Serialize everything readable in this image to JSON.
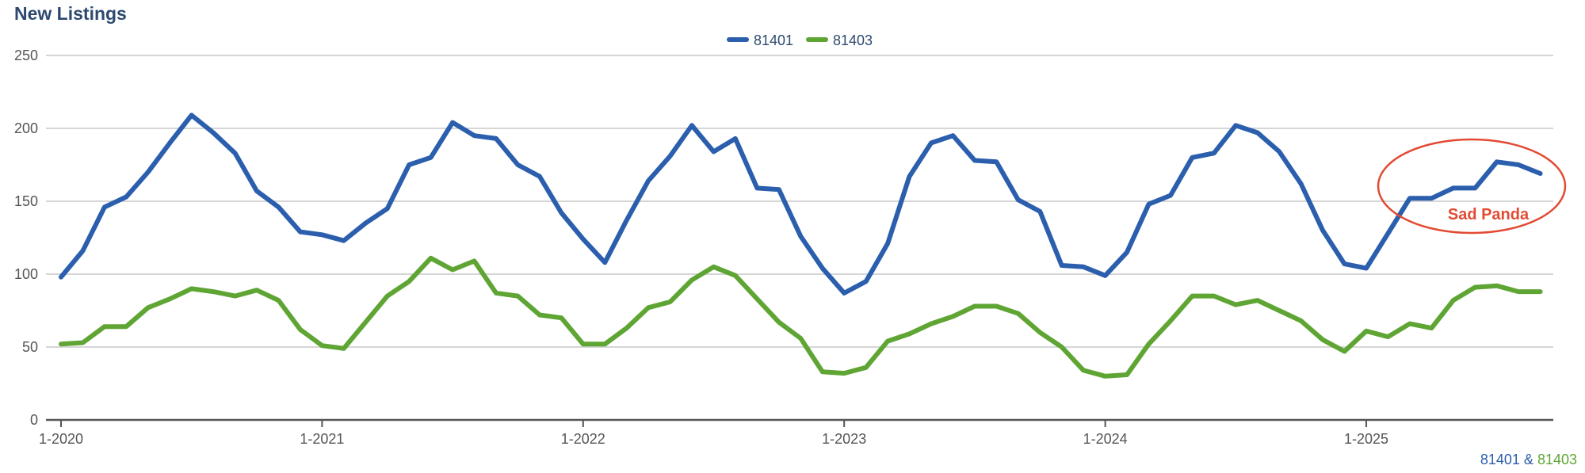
{
  "chart_data": {
    "type": "line",
    "title": "New Listings",
    "xlabel": "",
    "ylabel": "",
    "ylim": [
      0,
      250
    ],
    "yticks": [
      0,
      50,
      100,
      150,
      200,
      250
    ],
    "xticks": [
      "1-2020",
      "1-2021",
      "1-2022",
      "1-2023",
      "1-2024",
      "1-2025"
    ],
    "x_unit": "month index from 1-2020",
    "grid": true,
    "legend_position": "top-center",
    "series": [
      {
        "name": "81401",
        "color": "#2b5fad",
        "values": [
          98,
          116,
          146,
          153,
          170,
          190,
          209,
          197,
          183,
          157,
          146,
          129,
          127,
          123,
          135,
          145,
          175,
          180,
          204,
          195,
          193,
          175,
          167,
          142,
          124,
          108,
          137,
          164,
          181,
          202,
          184,
          193,
          159,
          158,
          126,
          104,
          87,
          95,
          121,
          167,
          190,
          195,
          178,
          177,
          151,
          143,
          106,
          105,
          99,
          115,
          148,
          154,
          180,
          183,
          202,
          197,
          184,
          162,
          130,
          107,
          104,
          128,
          152,
          152,
          159,
          159,
          177,
          175,
          169
        ]
      },
      {
        "name": "81403",
        "color": "#5fa534",
        "values": [
          52,
          53,
          64,
          64,
          77,
          83,
          90,
          88,
          85,
          89,
          82,
          62,
          51,
          49,
          67,
          85,
          95,
          111,
          103,
          109,
          87,
          85,
          72,
          70,
          52,
          52,
          63,
          77,
          81,
          96,
          105,
          99,
          83,
          67,
          56,
          33,
          32,
          36,
          54,
          59,
          66,
          71,
          78,
          78,
          73,
          60,
          50,
          34,
          30,
          31,
          52,
          68,
          85,
          85,
          79,
          82,
          75,
          68,
          55,
          47,
          61,
          57,
          66,
          63,
          82,
          91,
          92,
          88,
          88
        ]
      }
    ],
    "annotation": {
      "text": "Sad Panda",
      "color": "#e24a33"
    }
  },
  "footer": {
    "series1": "81401",
    "amp": "&",
    "series2": "81403"
  }
}
